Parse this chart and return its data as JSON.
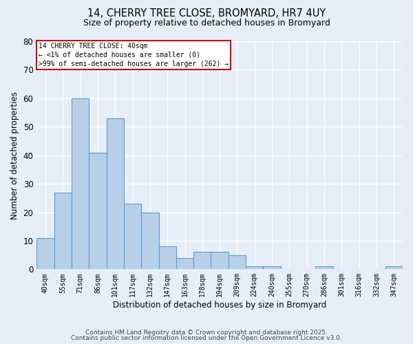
{
  "title_line1": "14, CHERRY TREE CLOSE, BROMYARD, HR7 4UY",
  "title_line2": "Size of property relative to detached houses in Bromyard",
  "xlabel": "Distribution of detached houses by size in Bromyard",
  "ylabel": "Number of detached properties",
  "categories": [
    "40sqm",
    "55sqm",
    "71sqm",
    "86sqm",
    "101sqm",
    "117sqm",
    "132sqm",
    "147sqm",
    "163sqm",
    "178sqm",
    "194sqm",
    "209sqm",
    "224sqm",
    "240sqm",
    "255sqm",
    "270sqm",
    "286sqm",
    "301sqm",
    "316sqm",
    "332sqm",
    "347sqm"
  ],
  "values": [
    11,
    27,
    60,
    41,
    53,
    23,
    20,
    8,
    4,
    6,
    6,
    5,
    1,
    1,
    0,
    0,
    1,
    0,
    0,
    0,
    1
  ],
  "bar_color": "#b8cfe8",
  "bar_edge_color": "#5b9bd5",
  "ylim": [
    0,
    80
  ],
  "yticks": [
    0,
    10,
    20,
    30,
    40,
    50,
    60,
    70,
    80
  ],
  "annotation_title": "14 CHERRY TREE CLOSE: 40sqm",
  "annotation_line2": "← <1% of detached houses are smaller (0)",
  "annotation_line3": ">99% of semi-detached houses are larger (262) →",
  "annotation_box_color": "#cc0000",
  "background_color": "#e8eef8",
  "grid_color": "#ffffff",
  "footer_line1": "Contains HM Land Registry data © Crown copyright and database right 2025.",
  "footer_line2": "Contains public sector information licensed under the Open Government Licence v3.0."
}
